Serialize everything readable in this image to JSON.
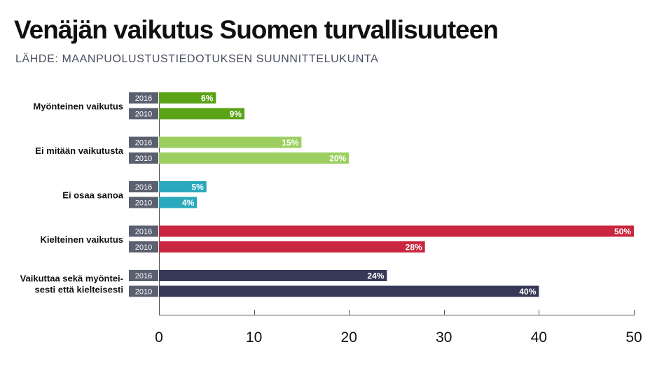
{
  "title": "Venäjän vaikutus Suomen turvallisuuteen",
  "source": "LÄHDE: MAANPUOLUSTUSTIEDOTUKSEN SUUNNITTELUKUNTA",
  "chart_data": {
    "type": "bar",
    "orientation": "horizontal",
    "title": "Venäjän vaikutus Suomen turvallisuuteen",
    "xlim": [
      0,
      50
    ],
    "xticks": [
      "0",
      "10",
      "20",
      "30",
      "40",
      "50"
    ],
    "value_suffix": "%",
    "grid": false,
    "groups": [
      {
        "category": [
          "Myönteinen vaikutus"
        ],
        "color": "#5aa317",
        "bars": [
          {
            "year": "2016",
            "value": 6
          },
          {
            "year": "2010",
            "value": 9
          }
        ]
      },
      {
        "category": [
          "Ei mitään vaikutusta"
        ],
        "color": "#9ccf60",
        "bars": [
          {
            "year": "2016",
            "value": 15
          },
          {
            "year": "2010",
            "value": 20
          }
        ]
      },
      {
        "category": [
          "Ei osaa sanoa"
        ],
        "color": "#2aa8bc",
        "bars": [
          {
            "year": "2016",
            "value": 5
          },
          {
            "year": "2010",
            "value": 4
          }
        ]
      },
      {
        "category": [
          "Kielteinen vaikutus"
        ],
        "color": "#c9273f",
        "bars": [
          {
            "year": "2016",
            "value": 50
          },
          {
            "year": "2010",
            "value": 28
          }
        ]
      },
      {
        "category": [
          "Vaikuttaa sekä myöntei-",
          "sesti että kielteisesti"
        ],
        "color": "#373858",
        "bars": [
          {
            "year": "2016",
            "value": 24
          },
          {
            "year": "2010",
            "value": 40
          }
        ]
      }
    ]
  }
}
